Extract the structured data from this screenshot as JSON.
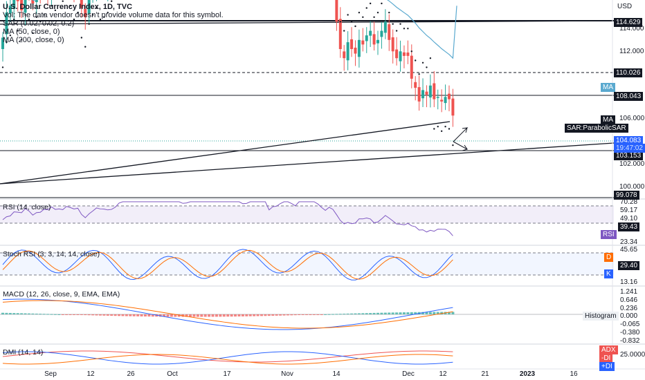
{
  "header": {
    "title": "U.S. Dollar Currency Index, 1D, TVC",
    "vol_note": "Vol: The data vendor doesn't provide volume data for this symbol.",
    "indicators": [
      "SAR (0.02, 0.02, 0.2)",
      "MA (50, close, 0)",
      "MA (200, close, 0)"
    ],
    "currency": "USD"
  },
  "panes": {
    "rsi": "RSI (14, close)",
    "stoch": "Stoch RSI (3, 3, 14, 14, close)",
    "macd": "MACD (12, 26, close, 9, EMA, EMA)",
    "dmi": "DMI (14, 14)"
  },
  "price_axis": [
    "114.000",
    "112.000",
    "106.000",
    "102.000",
    "100.000"
  ],
  "price_tags": [
    {
      "text": "114.629",
      "style": "dark"
    },
    {
      "text": "110.026",
      "style": "dark"
    },
    {
      "text": "108.043",
      "style": "dark"
    },
    {
      "text": "103.153",
      "style": "dark"
    },
    {
      "text": "99.078",
      "style": "dark"
    },
    {
      "text": "104.083",
      "style": "current"
    },
    {
      "text": "19:47:02",
      "style": "current"
    }
  ],
  "indicator_tags": {
    "ma50": "MA",
    "ma200": "MA",
    "sar": "SAR:ParabolicSAR"
  },
  "rsi_tags": [
    "70.28",
    "59.17",
    "49.10",
    "39.43",
    "23.34"
  ],
  "rsi_badge": "RSI",
  "stoch_tags": [
    "45.65",
    "29.40",
    "13.16"
  ],
  "stoch_badges": [
    "D",
    "K"
  ],
  "macd_tags": [
    "1.241",
    "0.646",
    "0.236",
    "0.000",
    "-0.065",
    "-0.380",
    "-0.832"
  ],
  "macd_badge": "Histogram",
  "dmi_tags": [
    "25.0000"
  ],
  "dmi_badges": [
    "ADX",
    "-DI",
    "+DI"
  ],
  "x_ticks": [
    "Sep",
    "12",
    "26",
    "Oct",
    "17",
    "Nov",
    "14",
    "Dec",
    "12",
    "21",
    "2023",
    "16"
  ],
  "colors": {
    "up": "#26a69a",
    "down": "#ef5350",
    "ma50": "#5aa9cf",
    "ma200": "#131722",
    "rsi": "#7e57c2",
    "k": "#2962ff",
    "d": "#ff6d00"
  },
  "chart_data": {
    "type": "candlestick",
    "title": "U.S. Dollar Currency Index, 1D, TVC",
    "y_range": [
      100,
      116
    ],
    "closes": [
      107.5,
      108.6,
      108.9,
      109.6,
      109.1,
      108.7,
      109.8,
      109.6,
      109.0,
      109.7,
      109.5,
      109.8,
      109.4,
      110.2,
      110.0,
      110.5,
      110.4,
      110.9,
      110.2,
      109.6,
      109.9,
      108.8,
      108.4,
      109.4,
      109.8,
      110.1,
      109.6,
      109.7,
      109.9,
      110.4,
      111.0,
      111.7,
      112.2,
      111.4,
      113.1,
      112.9,
      113.5,
      114.0,
      114.2,
      113.9,
      113.4,
      114.3,
      113.1,
      112.3,
      112.8,
      112.0,
      113.0,
      112.4,
      111.1,
      111.6,
      112.3,
      112.9,
      113.2,
      113.9,
      113.3,
      113.5,
      113.8,
      113.3,
      113.9,
      113.1,
      112.5,
      112.8,
      113.0,
      112.9,
      111.8,
      111.9,
      112.2,
      111.8,
      111.6,
      112.3,
      112.1,
      110.3,
      111.1,
      110.9,
      111.1,
      111.4,
      111.6,
      111.5,
      111.3,
      112.8,
      112.0,
      112.5,
      113.1,
      112.3,
      111.4,
      110.9,
      110.2,
      110.6,
      109.7,
      108.2,
      107.0,
      106.6,
      107.3,
      107.0,
      106.8,
      107.4,
      107.2,
      107.6,
      107.8,
      107.2,
      107.4,
      107.8,
      108.2,
      107.4,
      106.9,
      106.6,
      106.9,
      106.7,
      106.7,
      105.7,
      105.3,
      104.7,
      105.2,
      105.0,
      105.4,
      104.8,
      104.9,
      104.7,
      104.9,
      104.8,
      104.083
    ]
  }
}
